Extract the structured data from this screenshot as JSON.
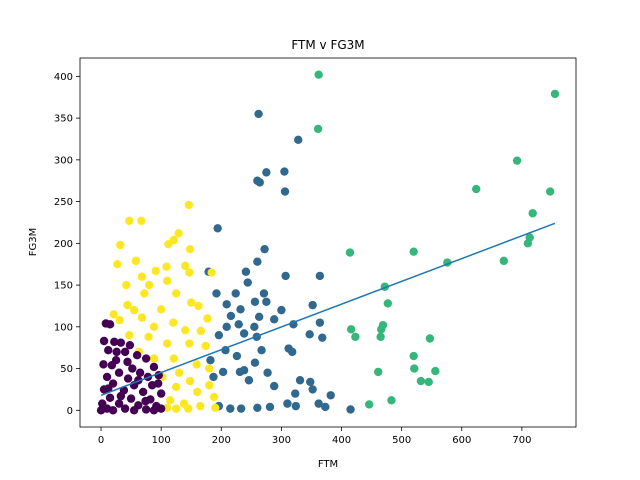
{
  "chart_data": {
    "type": "scatter",
    "title": "FTM v FG3M",
    "xlabel": "FTM",
    "ylabel": "FG3M",
    "xlim": [
      -35,
      790
    ],
    "ylim": [
      -20,
      422
    ],
    "x_ticks": [
      0,
      100,
      200,
      300,
      400,
      500,
      600,
      700
    ],
    "y_ticks": [
      0,
      50,
      100,
      150,
      200,
      250,
      300,
      350,
      400
    ],
    "grid": false,
    "colors": {
      "cluster_purple": "#440154",
      "cluster_yellow": "#fde725",
      "cluster_blue": "#31688e",
      "cluster_green": "#35b779",
      "trend_line": "#1f77b4"
    },
    "trend_line": {
      "x": [
        0,
        755
      ],
      "y": [
        18,
        224
      ]
    },
    "series": [
      {
        "name": "cluster_green",
        "points": [
          [
            362,
            402
          ],
          [
            755,
            379
          ],
          [
            361,
            337
          ],
          [
            692,
            299
          ],
          [
            624,
            265
          ],
          [
            747,
            262
          ],
          [
            718,
            236
          ],
          [
            713,
            207
          ],
          [
            710,
            200
          ],
          [
            670,
            179
          ],
          [
            576,
            177
          ],
          [
            520,
            190
          ],
          [
            414,
            189
          ],
          [
            472,
            148
          ],
          [
            477,
            128
          ],
          [
            469,
            102
          ],
          [
            466,
            97
          ],
          [
            416,
            97
          ],
          [
            423,
            88
          ],
          [
            465,
            88
          ],
          [
            547,
            86
          ],
          [
            520,
            65
          ],
          [
            521,
            50
          ],
          [
            556,
            47
          ],
          [
            461,
            46
          ],
          [
            532,
            35
          ],
          [
            545,
            34
          ],
          [
            483,
            12
          ],
          [
            446,
            7
          ]
        ]
      },
      {
        "name": "cluster_blue",
        "points": [
          [
            262,
            355
          ],
          [
            328,
            324
          ],
          [
            275,
            285
          ],
          [
            305,
            286
          ],
          [
            260,
            275
          ],
          [
            264,
            273
          ],
          [
            306,
            262
          ],
          [
            194,
            218
          ],
          [
            272,
            193
          ],
          [
            260,
            178
          ],
          [
            241,
            166
          ],
          [
            179,
            166
          ],
          [
            307,
            161
          ],
          [
            364,
            161
          ],
          [
            244,
            153
          ],
          [
            224,
            140
          ],
          [
            192,
            140
          ],
          [
            256,
            130
          ],
          [
            275,
            130
          ],
          [
            271,
            140
          ],
          [
            209,
            127
          ],
          [
            232,
            121
          ],
          [
            300,
            120
          ],
          [
            352,
            126
          ],
          [
            216,
            113
          ],
          [
            263,
            112
          ],
          [
            288,
            109
          ],
          [
            320,
            103
          ],
          [
            209,
            100
          ],
          [
            229,
            103
          ],
          [
            255,
            100
          ],
          [
            364,
            105
          ],
          [
            196,
            90
          ],
          [
            238,
            92
          ],
          [
            259,
            88
          ],
          [
            347,
            91
          ],
          [
            368,
            87
          ],
          [
            207,
            72
          ],
          [
            226,
            65
          ],
          [
            267,
            72
          ],
          [
            312,
            74
          ],
          [
            318,
            70
          ],
          [
            182,
            60
          ],
          [
            256,
            57
          ],
          [
            238,
            48
          ],
          [
            203,
            46
          ],
          [
            231,
            46
          ],
          [
            277,
            45
          ],
          [
            187,
            40
          ],
          [
            246,
            36
          ],
          [
            331,
            36
          ],
          [
            348,
            34
          ],
          [
            352,
            25
          ],
          [
            288,
            29
          ],
          [
            323,
            20
          ],
          [
            382,
            18
          ],
          [
            196,
            5
          ],
          [
            215,
            2
          ],
          [
            233,
            2
          ],
          [
            260,
            3
          ],
          [
            281,
            4
          ],
          [
            310,
            8
          ],
          [
            324,
            5
          ],
          [
            362,
            8
          ],
          [
            373,
            4
          ],
          [
            415,
            1
          ]
        ]
      },
      {
        "name": "cluster_yellow",
        "points": [
          [
            47,
            227
          ],
          [
            67,
            227
          ],
          [
            146,
            246
          ],
          [
            129,
            212
          ],
          [
            112,
            199
          ],
          [
            121,
            204
          ],
          [
            32,
            198
          ],
          [
            148,
            193
          ],
          [
            27,
            175
          ],
          [
            109,
            172
          ],
          [
            140,
            173
          ],
          [
            58,
            179
          ],
          [
            68,
            160
          ],
          [
            91,
            167
          ],
          [
            42,
            150
          ],
          [
            80,
            150
          ],
          [
            110,
            155
          ],
          [
            147,
            165
          ],
          [
            184,
            165
          ],
          [
            125,
            140
          ],
          [
            72,
            140
          ],
          [
            150,
            129
          ],
          [
            44,
            126
          ],
          [
            100,
            121
          ],
          [
            21,
            115
          ],
          [
            55,
            120
          ],
          [
            162,
            125
          ],
          [
            31,
            108
          ],
          [
            68,
            111
          ],
          [
            88,
            100
          ],
          [
            120,
            105
          ],
          [
            177,
            110
          ],
          [
            47,
            90
          ],
          [
            79,
            88
          ],
          [
            140,
            96
          ],
          [
            166,
            95
          ],
          [
            110,
            80
          ],
          [
            147,
            80
          ],
          [
            174,
            77
          ],
          [
            63,
            70
          ],
          [
            88,
            62
          ],
          [
            121,
            62
          ],
          [
            159,
            55
          ],
          [
            180,
            50
          ],
          [
            130,
            45
          ],
          [
            102,
            40
          ],
          [
            148,
            35
          ],
          [
            180,
            30
          ],
          [
            125,
            28
          ],
          [
            160,
            22
          ],
          [
            188,
            16
          ],
          [
            115,
            12
          ],
          [
            138,
            8
          ],
          [
            165,
            5
          ],
          [
            190,
            3
          ],
          [
            110,
            3
          ],
          [
            125,
            2
          ],
          [
            145,
            2
          ]
        ]
      },
      {
        "name": "cluster_purple",
        "points": [
          [
            8,
            104
          ],
          [
            15,
            103
          ],
          [
            5,
            83
          ],
          [
            22,
            82
          ],
          [
            33,
            81
          ],
          [
            48,
            78
          ],
          [
            12,
            72
          ],
          [
            40,
            70
          ],
          [
            60,
            66
          ],
          [
            25,
            60
          ],
          [
            75,
            62
          ],
          [
            4,
            55
          ],
          [
            18,
            54
          ],
          [
            52,
            50
          ],
          [
            88,
            52
          ],
          [
            30,
            45
          ],
          [
            65,
            45
          ],
          [
            10,
            40
          ],
          [
            45,
            38
          ],
          [
            78,
            40
          ],
          [
            96,
            42
          ],
          [
            20,
            32
          ],
          [
            55,
            30
          ],
          [
            85,
            30
          ],
          [
            5,
            25
          ],
          [
            38,
            24
          ],
          [
            70,
            22
          ],
          [
            100,
            20
          ],
          [
            15,
            15
          ],
          [
            50,
            14
          ],
          [
            82,
            13
          ],
          [
            2,
            8
          ],
          [
            30,
            8
          ],
          [
            62,
            6
          ],
          [
            92,
            5
          ],
          [
            10,
            2
          ],
          [
            40,
            2
          ],
          [
            75,
            1
          ],
          [
            100,
            2
          ],
          [
            0,
            0
          ],
          [
            20,
            0
          ],
          [
            55,
            0
          ],
          [
            88,
            0
          ],
          [
            33,
            17
          ],
          [
            62,
            36
          ],
          [
            44,
            58
          ],
          [
            12,
            26
          ],
          [
            74,
            11
          ],
          [
            95,
            32
          ],
          [
            26,
            70
          ]
        ]
      }
    ]
  }
}
